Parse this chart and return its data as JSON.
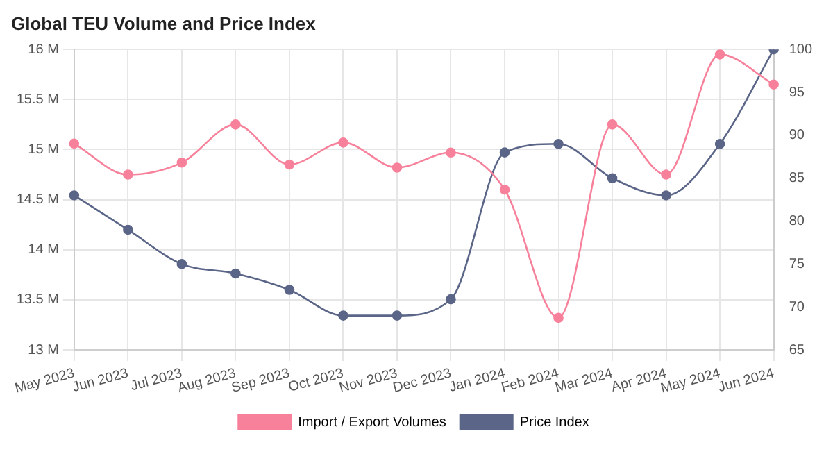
{
  "chart_data": {
    "type": "line",
    "title": "Global TEU Volume and Price Index",
    "categories": [
      "May 2023",
      "Jun 2023",
      "Jul 2023",
      "Aug 2023",
      "Sep 2023",
      "Oct 2023",
      "Nov 2023",
      "Dec 2023",
      "Jan 2024",
      "Feb 2024",
      "Mar 2024",
      "Apr 2024",
      "May 2024",
      "Jun 2024"
    ],
    "series": [
      {
        "name": "Import / Export Volumes",
        "color": "#f7819b",
        "values": [
          15.06,
          14.75,
          14.87,
          15.25,
          14.85,
          15.07,
          14.82,
          14.97,
          14.6,
          13.32,
          15.25,
          14.75,
          15.95,
          15.65
        ]
      },
      {
        "name": "Price Index",
        "color": "#5a6587",
        "axis": "y2",
        "values": [
          83,
          79,
          75,
          73.9,
          72,
          69,
          69,
          70.9,
          88,
          89,
          85,
          83,
          89,
          100
        ]
      }
    ],
    "ylim": [
      13,
      16
    ],
    "yticks": [
      {
        "value": 13,
        "label": "13 M"
      },
      {
        "value": 13.5,
        "label": "13.5 M"
      },
      {
        "value": 14,
        "label": "14 M"
      },
      {
        "value": 14.5,
        "label": "14.5 M"
      },
      {
        "value": 15,
        "label": "15 M"
      },
      {
        "value": 15.5,
        "label": "15.5 M"
      },
      {
        "value": 16,
        "label": "16 M"
      }
    ],
    "y2lim": [
      65,
      100
    ],
    "y2ticks": [
      65,
      70,
      75,
      80,
      85,
      90,
      95,
      100
    ],
    "grid": true,
    "legend": "bottom",
    "marker": "circle",
    "line_style": "solid"
  }
}
